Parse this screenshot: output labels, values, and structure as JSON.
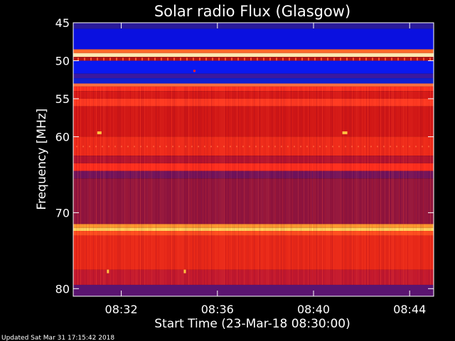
{
  "chart_data": {
    "type": "heatmap",
    "title": "Solar radio Flux (Glasgow)",
    "xlabel": "Start Time (23-Mar-18 08:30:00)",
    "ylabel": "Frequency [MHz]",
    "x_range_minutes": [
      0,
      15
    ],
    "x_ticks": [
      {
        "label": "08:32",
        "minutes": 2
      },
      {
        "label": "08:36",
        "minutes": 6
      },
      {
        "label": "08:40",
        "minutes": 10
      },
      {
        "label": "08:44",
        "minutes": 14
      }
    ],
    "y_range_mhz": [
      45,
      81
    ],
    "y_ticks": [
      {
        "label": "45",
        "mhz": 45
      },
      {
        "label": "50",
        "mhz": 50
      },
      {
        "label": "55",
        "mhz": 55
      },
      {
        "label": "60",
        "mhz": 60
      },
      {
        "label": "70",
        "mhz": 70
      },
      {
        "label": "80",
        "mhz": 80
      }
    ],
    "bands": [
      {
        "from": 45.0,
        "to": 45.8,
        "color": "#2a1a9a"
      },
      {
        "from": 45.8,
        "to": 48.5,
        "color": "#0a10e0"
      },
      {
        "from": 48.5,
        "to": 49.0,
        "color": "#ff6a2a"
      },
      {
        "from": 49.0,
        "to": 49.5,
        "color": "#ffe7b0"
      },
      {
        "from": 49.5,
        "to": 50.0,
        "color": "#b01414"
      },
      {
        "from": 50.0,
        "to": 51.7,
        "color": "#0a18f0"
      },
      {
        "from": 51.7,
        "to": 52.3,
        "color": "#3a18a0"
      },
      {
        "from": 52.3,
        "to": 53.0,
        "color": "#1020d0"
      },
      {
        "from": 53.0,
        "to": 53.4,
        "color": "#ff7040"
      },
      {
        "from": 53.4,
        "to": 54.0,
        "color": "#ff3020"
      },
      {
        "from": 54.0,
        "to": 55.0,
        "color": "#d41818"
      },
      {
        "from": 55.0,
        "to": 56.0,
        "color": "#ff3a22"
      },
      {
        "from": 56.0,
        "to": 60.0,
        "color": "#d01616"
      },
      {
        "from": 60.0,
        "to": 62.5,
        "color": "#ee2a1a"
      },
      {
        "from": 62.5,
        "to": 63.5,
        "color": "#b01230"
      },
      {
        "from": 63.5,
        "to": 64.5,
        "color": "#ff2e1e"
      },
      {
        "from": 64.5,
        "to": 65.5,
        "color": "#6a1260"
      },
      {
        "from": 65.5,
        "to": 71.5,
        "color": "#8c1440"
      },
      {
        "from": 71.5,
        "to": 72.0,
        "color": "#ffa030"
      },
      {
        "from": 72.0,
        "to": 72.4,
        "color": "#ffe060"
      },
      {
        "from": 72.4,
        "to": 73.0,
        "color": "#ff5020"
      },
      {
        "from": 73.0,
        "to": 77.5,
        "color": "#e82818"
      },
      {
        "from": 77.5,
        "to": 79.5,
        "color": "#c01830"
      },
      {
        "from": 79.5,
        "to": 81.0,
        "color": "#5a1470"
      }
    ]
  },
  "footer": "Updated Sat Mar 31 17:15:42 2018"
}
